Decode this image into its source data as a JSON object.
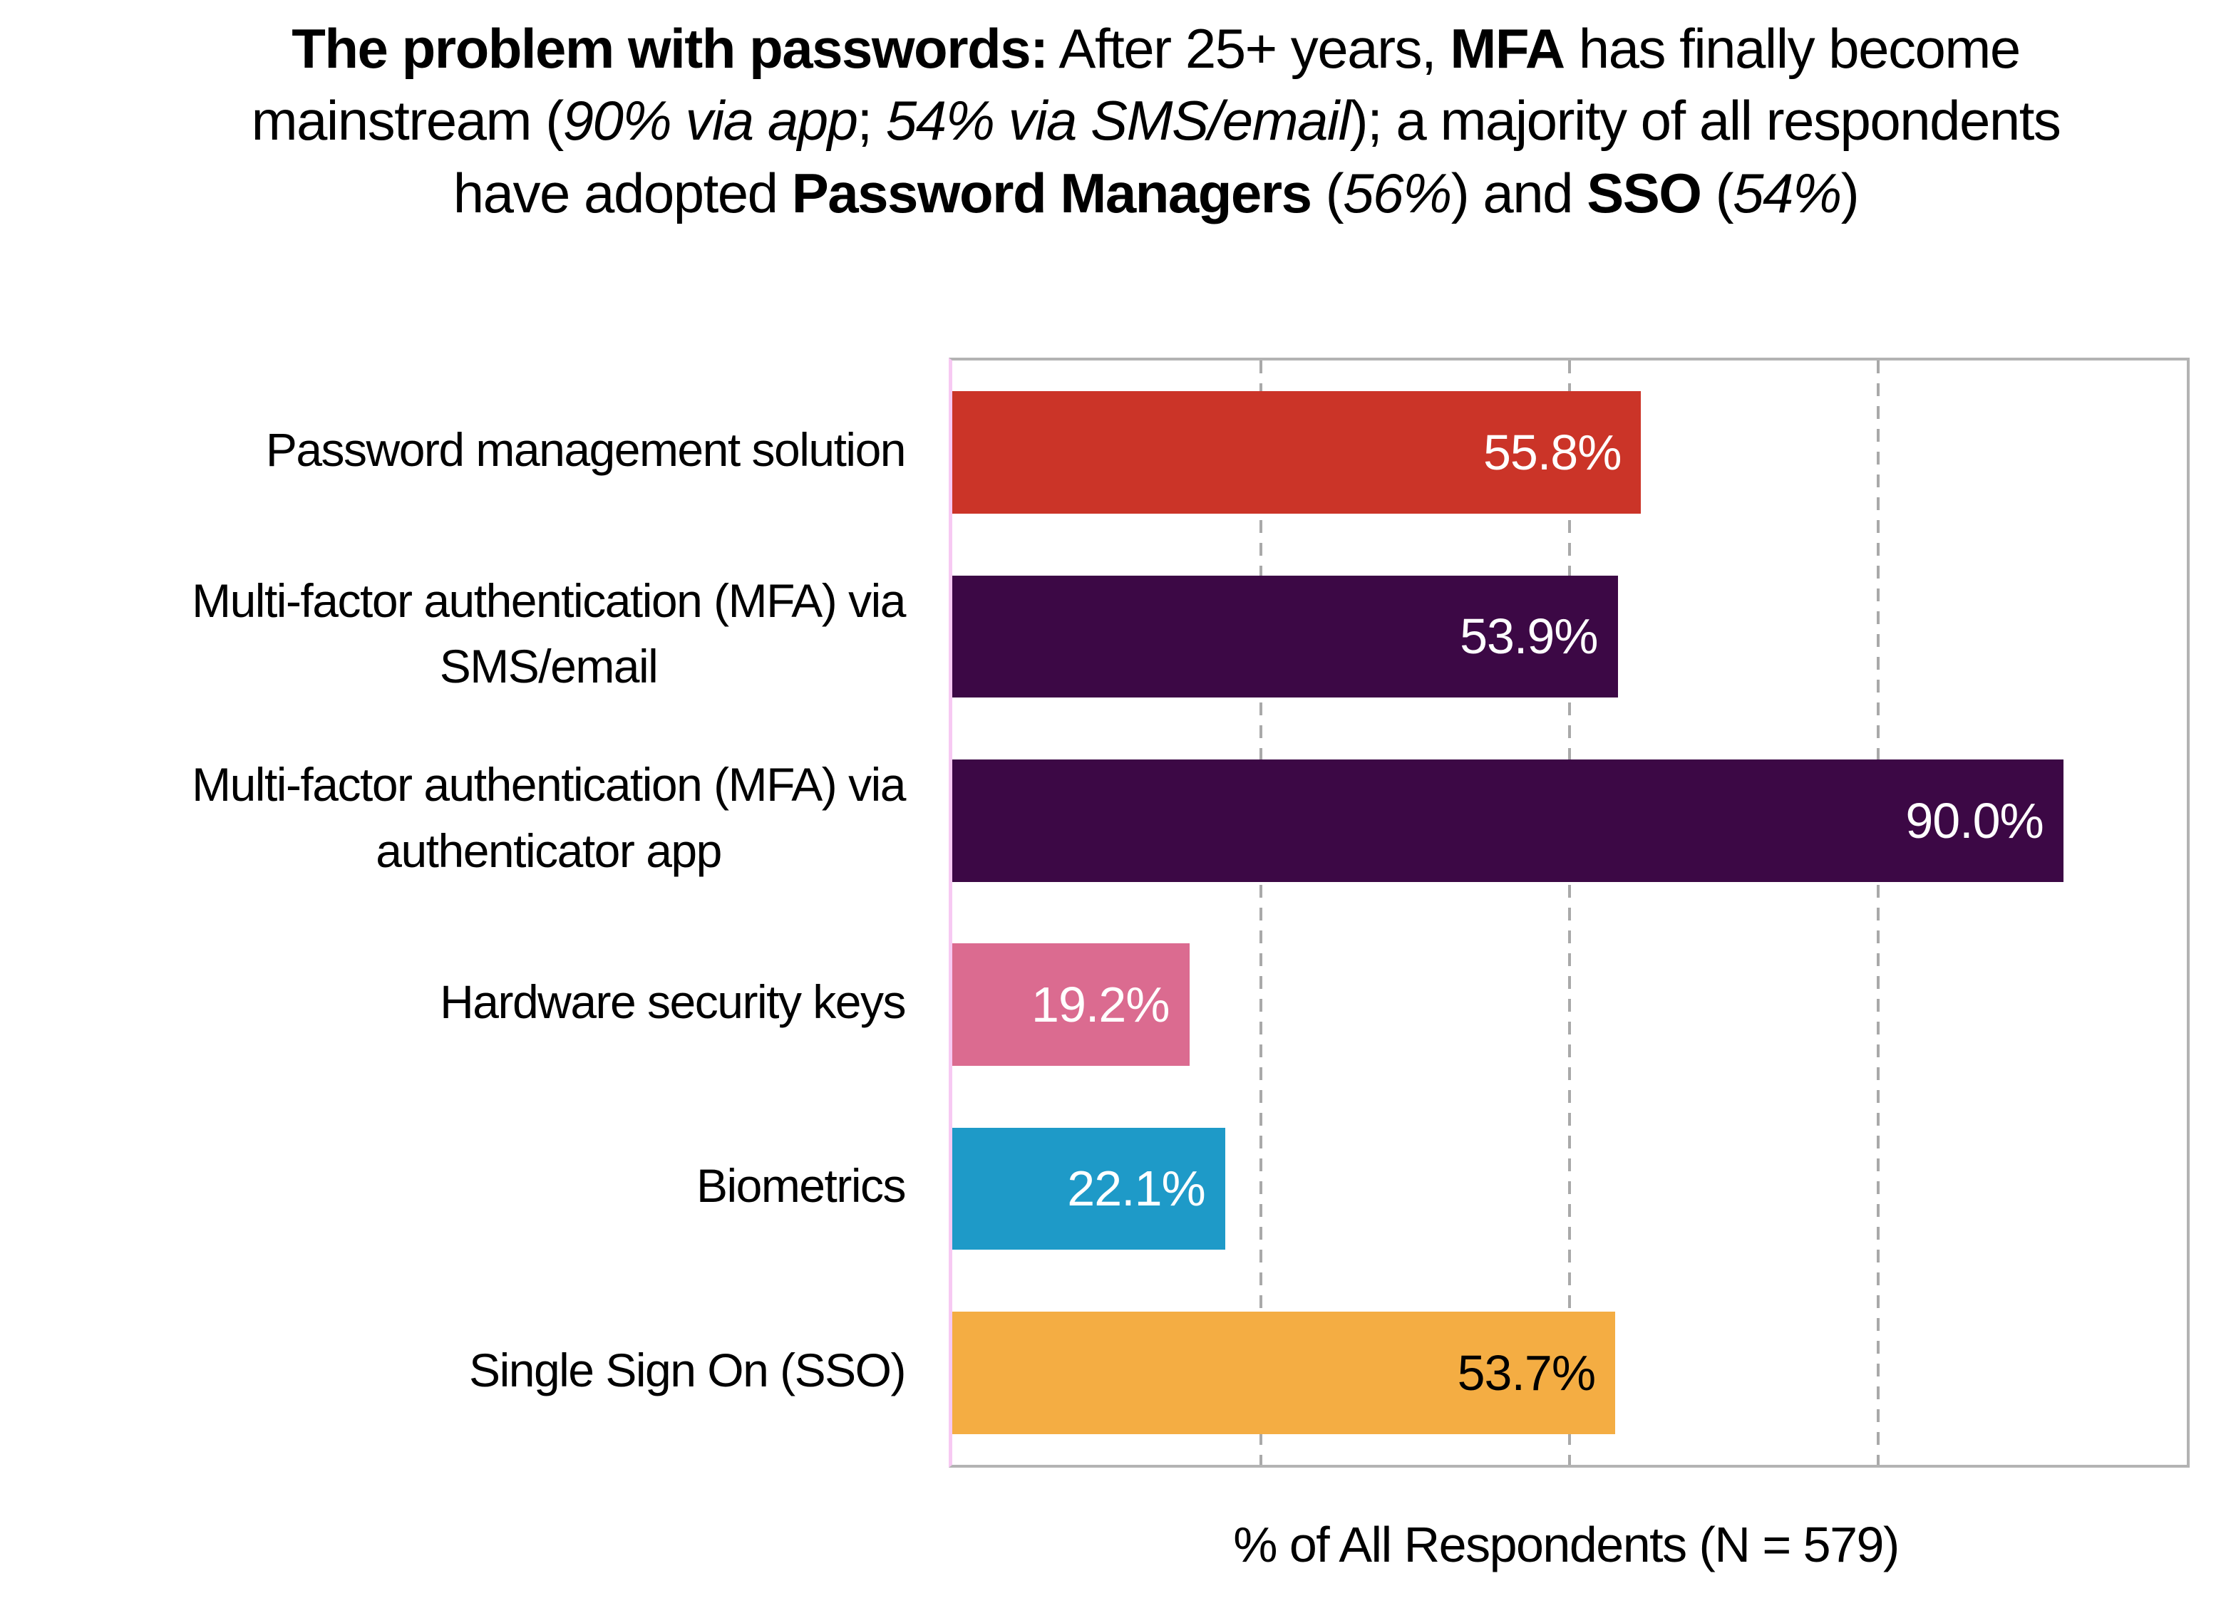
{
  "title": {
    "lines": [
      [
        {
          "text": "The problem with passwords:",
          "bold": true
        },
        {
          "text": " After 25+ years, "
        },
        {
          "text": "MFA",
          "bold": true
        },
        {
          "text": " has finally become"
        }
      ],
      [
        {
          "text": "mainstream ("
        },
        {
          "text": "90% via app",
          "italic": true
        },
        {
          "text": "; "
        },
        {
          "text": "54% via SMS/email",
          "italic": true
        },
        {
          "text": "); a majority of all respondents"
        }
      ],
      [
        {
          "text": "have adopted "
        },
        {
          "text": "Password Managers",
          "bold": true
        },
        {
          "text": " ("
        },
        {
          "text": "56%",
          "italic": true
        },
        {
          "text": ") and "
        },
        {
          "text": "SSO",
          "bold": true
        },
        {
          "text": " ("
        },
        {
          "text": "54%",
          "italic": true
        },
        {
          "text": ")"
        }
      ]
    ]
  },
  "chart_data": {
    "type": "bar",
    "orientation": "horizontal",
    "xlabel": "% of All Respondents (N = 579)",
    "xlim": [
      0,
      100
    ],
    "gridlines_pct": [
      25,
      50,
      75
    ],
    "grid_style": "dashed",
    "legend": "none",
    "categories": [
      "Password management solution",
      "Multi-factor authentication (MFA) via SMS/email",
      "Multi-factor authentication (MFA) via authenticator app",
      "Hardware security keys",
      "Biometrics",
      "Single Sign On (SSO)"
    ],
    "values": [
      55.8,
      53.9,
      90.0,
      19.2,
      22.1,
      53.7
    ],
    "items": [
      {
        "label_lines": [
          "Password management solution"
        ],
        "value": 55.8,
        "value_label": "55.8%",
        "color": "#cb3428",
        "value_color": "#ffffff"
      },
      {
        "label_lines": [
          "Multi-factor authentication (MFA) via",
          "SMS/email"
        ],
        "value": 53.9,
        "value_label": "53.9%",
        "color": "#3c0845",
        "value_color": "#ffffff"
      },
      {
        "label_lines": [
          "Multi-factor authentication (MFA) via",
          "authenticator app"
        ],
        "value": 90.0,
        "value_label": "90.0%",
        "color": "#3c0845",
        "value_color": "#ffffff"
      },
      {
        "label_lines": [
          "Hardware security keys"
        ],
        "value": 19.2,
        "value_label": "19.2%",
        "color": "#db6b90",
        "value_color": "#ffffff"
      },
      {
        "label_lines": [
          "Biometrics"
        ],
        "value": 22.1,
        "value_label": "22.1%",
        "color": "#1e9ac8",
        "value_color": "#ffffff"
      },
      {
        "label_lines": [
          "Single Sign On (SSO)"
        ],
        "value": 53.7,
        "value_label": "53.7%",
        "color": "#f4ad43",
        "value_color": "#000000"
      }
    ],
    "colors": {
      "axis_line": "#f7c9f3",
      "plot_border": "#b3b3b3",
      "gridline": "#a9a9a9",
      "text": "#000000"
    }
  }
}
